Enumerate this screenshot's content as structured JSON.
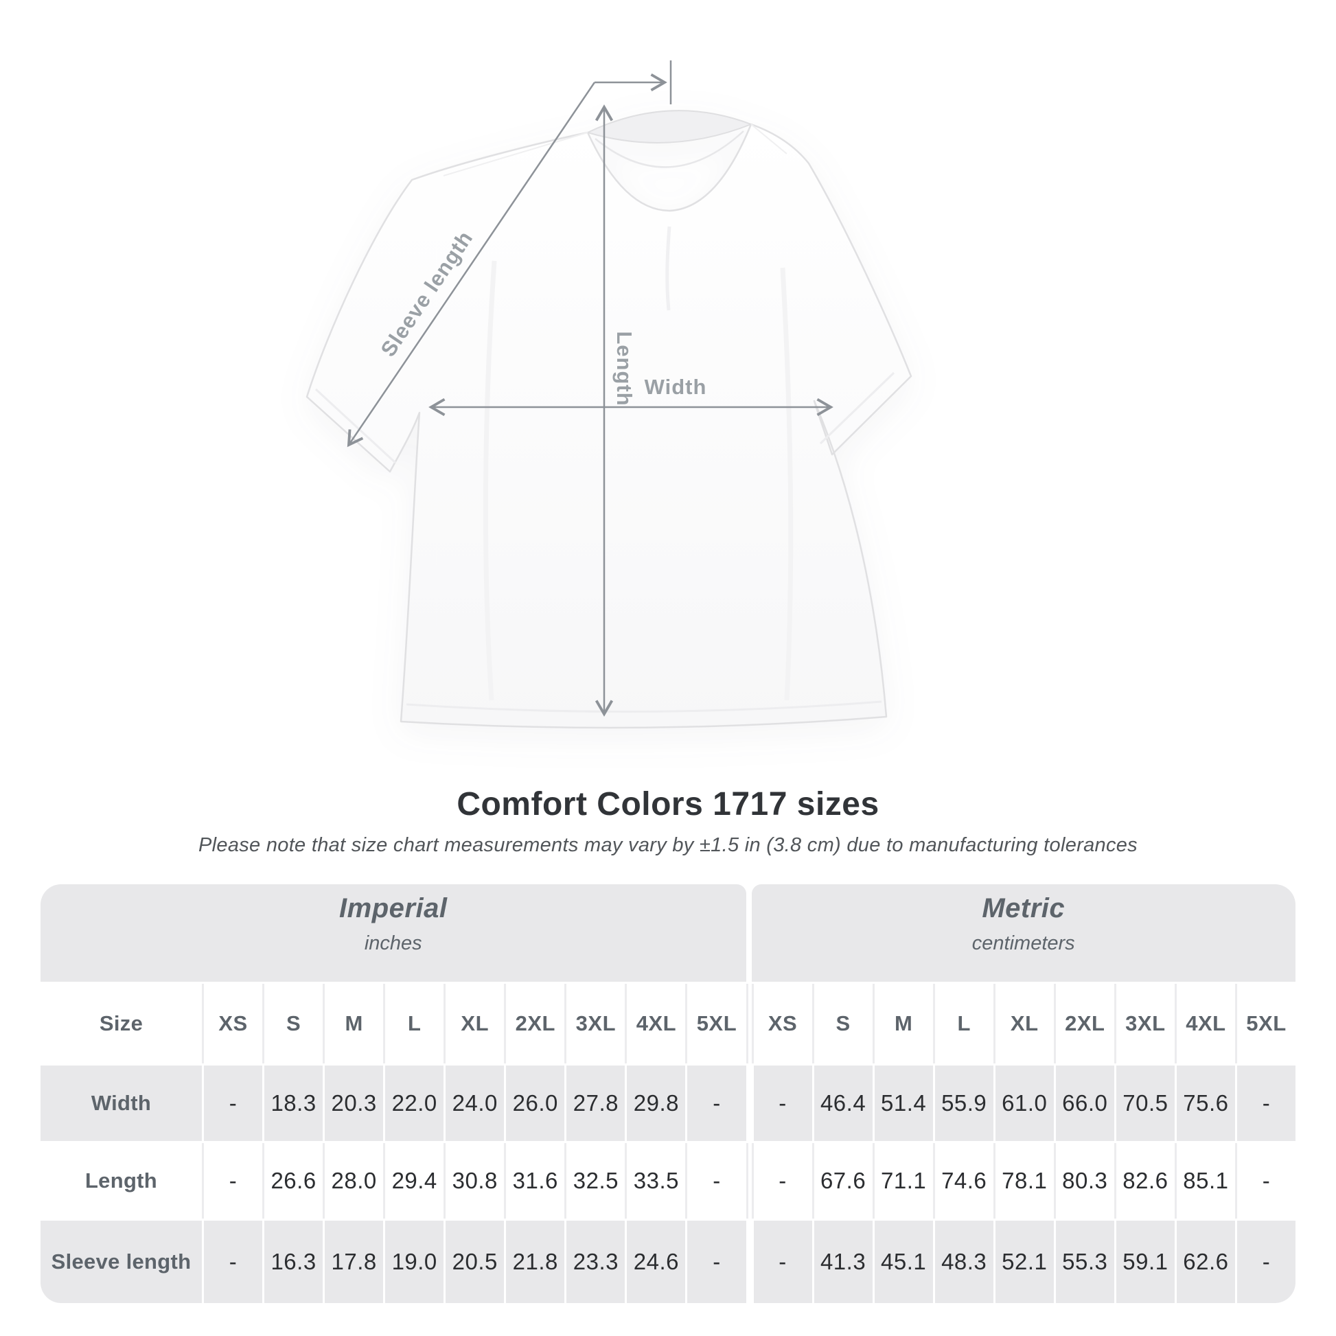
{
  "diagram": {
    "sleeve_label": "Sleeve length",
    "length_label": "Length",
    "width_label": "Width"
  },
  "heading": {
    "title": "Comfort Colors 1717 sizes",
    "subtitle": "Please note that size chart measurements may vary by ±1.5 in (3.8 cm) due to manufacturing tolerances"
  },
  "table": {
    "size_column_header": "Size",
    "unit_groups": [
      {
        "name": "Imperial",
        "unit": "inches"
      },
      {
        "name": "Metric",
        "unit": "centimeters"
      }
    ],
    "sizes": [
      "XS",
      "S",
      "M",
      "L",
      "XL",
      "2XL",
      "3XL",
      "4XL",
      "5XL"
    ],
    "rows": [
      {
        "label": "Width",
        "imperial": [
          "-",
          "18.3",
          "20.3",
          "22.0",
          "24.0",
          "26.0",
          "27.8",
          "29.8",
          "-"
        ],
        "metric": [
          "-",
          "46.4",
          "51.4",
          "55.9",
          "61.0",
          "66.0",
          "70.5",
          "75.6",
          "-"
        ]
      },
      {
        "label": "Length",
        "imperial": [
          "-",
          "26.6",
          "28.0",
          "29.4",
          "30.8",
          "31.6",
          "32.5",
          "33.5",
          "-"
        ],
        "metric": [
          "-",
          "67.6",
          "71.1",
          "74.6",
          "78.1",
          "80.3",
          "82.6",
          "85.1",
          "-"
        ]
      },
      {
        "label": "Sleeve length",
        "imperial": [
          "-",
          "16.3",
          "17.8",
          "19.0",
          "20.5",
          "21.8",
          "23.3",
          "24.6",
          "-"
        ],
        "metric": [
          "-",
          "41.3",
          "45.1",
          "48.3",
          "52.1",
          "55.3",
          "59.1",
          "62.6",
          "-"
        ]
      }
    ]
  },
  "colors": {
    "table_fill_gray": "#e8e8ea",
    "header_text": "#5d646b",
    "value_text": "#2b2d30",
    "measure_line": "#8d9298",
    "measure_label": "#9aa0a5"
  }
}
